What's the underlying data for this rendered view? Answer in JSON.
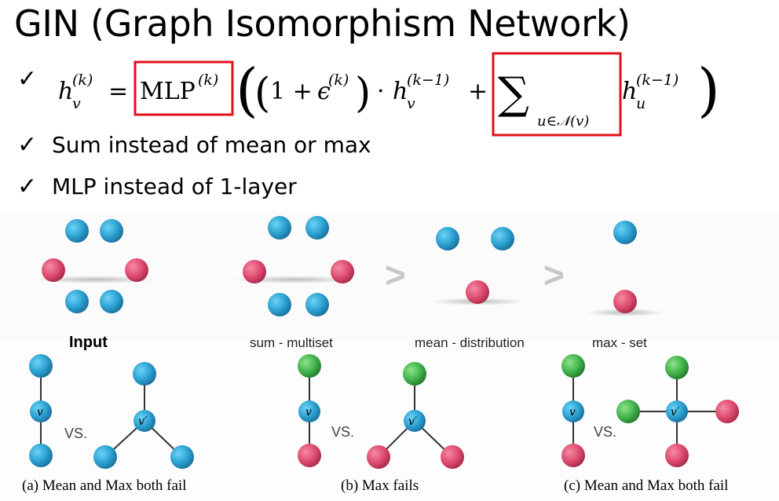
{
  "title": "GIN (Graph Isomorphism Network)",
  "bullets": [
    {
      "check": "✓",
      "text": ""
    },
    {
      "check": "✓",
      "text": "Sum instead of mean or max"
    },
    {
      "check": "✓",
      "text": "MLP instead of 1-layer"
    }
  ],
  "formula": {
    "lhs_var": "h",
    "lhs_sub": "v",
    "lhs_sup": "(k)",
    "equals": "=",
    "mlp": "MLP",
    "mlp_sup": "(k)",
    "one_plus": "1 +",
    "epsilon": "ϵ",
    "eps_sup": "(k)",
    "dot": "·",
    "h1_sub": "v",
    "h1_sup": "(k−1)",
    "plus": "+",
    "sigma": "∑",
    "sum_sub": "u∈𝒩(v)",
    "h2_sub": "u",
    "h2_sup": "(k−1)",
    "highlight_color": "#e3101a"
  },
  "figure_top": {
    "labels": [
      "Input",
      "sum - multiset",
      "mean - distribution",
      "max - set"
    ],
    "greater_than": ">"
  },
  "figure_bottom": {
    "vs_label": "VS.",
    "node_v": "v",
    "node_vprime": "v′",
    "captions": [
      "(a) Mean and Max both fail",
      "(b) Max fails",
      "(c) Mean and Max both fail"
    ]
  },
  "colors": {
    "blue_node": "#2a9fd0",
    "pink_node": "#dd4a6e",
    "green_node": "#3fb24a",
    "edge": "#333333",
    "red_box": "#e3101a"
  }
}
